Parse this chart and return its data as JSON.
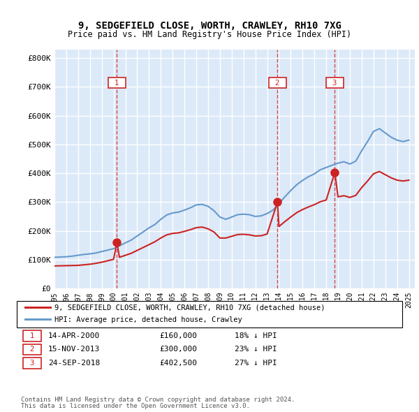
{
  "title": "9, SEDGEFIELD CLOSE, WORTH, CRAWLEY, RH10 7XG",
  "subtitle": "Price paid vs. HM Land Registry's House Price Index (HPI)",
  "ylabel": "",
  "background_color": "#dce9f8",
  "plot_bg": "#dce9f8",
  "legend_line1": "9, SEDGEFIELD CLOSE, WORTH, CRAWLEY, RH10 7XG (detached house)",
  "legend_line2": "HPI: Average price, detached house, Crawley",
  "footnote1": "Contains HM Land Registry data © Crown copyright and database right 2024.",
  "footnote2": "This data is licensed under the Open Government Licence v3.0.",
  "transactions": [
    {
      "num": 1,
      "date": "14-APR-2000",
      "price": 160000,
      "pct": "18%",
      "x": 2000.29
    },
    {
      "num": 2,
      "date": "15-NOV-2013",
      "price": 300000,
      "pct": "23%",
      "x": 2013.88
    },
    {
      "num": 3,
      "date": "24-SEP-2018",
      "price": 402500,
      "pct": "27%",
      "x": 2018.73
    }
  ],
  "hpi_x": [
    1995,
    1995.5,
    1996,
    1996.5,
    1997,
    1997.5,
    1998,
    1998.5,
    1999,
    1999.5,
    2000,
    2000.5,
    2001,
    2001.5,
    2002,
    2002.5,
    2003,
    2003.5,
    2004,
    2004.5,
    2005,
    2005.5,
    2006,
    2006.5,
    2007,
    2007.5,
    2008,
    2008.5,
    2009,
    2009.5,
    2010,
    2010.5,
    2011,
    2011.5,
    2012,
    2012.5,
    2013,
    2013.5,
    2014,
    2014.5,
    2015,
    2015.5,
    2016,
    2016.5,
    2017,
    2017.5,
    2018,
    2018.5,
    2019,
    2019.5,
    2020,
    2020.5,
    2021,
    2021.5,
    2022,
    2022.5,
    2023,
    2023.5,
    2024,
    2024.5,
    2025
  ],
  "hpi_y": [
    108000,
    109000,
    110000,
    112000,
    115000,
    118000,
    120000,
    123000,
    128000,
    133000,
    138000,
    148000,
    158000,
    168000,
    182000,
    196000,
    210000,
    222000,
    240000,
    255000,
    262000,
    265000,
    272000,
    280000,
    290000,
    292000,
    285000,
    270000,
    248000,
    240000,
    248000,
    256000,
    258000,
    256000,
    250000,
    252000,
    260000,
    272000,
    295000,
    318000,
    340000,
    360000,
    375000,
    388000,
    398000,
    412000,
    420000,
    428000,
    435000,
    440000,
    432000,
    442000,
    478000,
    510000,
    545000,
    555000,
    540000,
    525000,
    515000,
    510000,
    515000
  ],
  "price_x": [
    1995,
    1995.5,
    1996,
    1996.5,
    1997,
    1997.5,
    1998,
    1998.5,
    1999,
    1999.5,
    2000,
    2000.29,
    2000.5,
    2001,
    2001.5,
    2002,
    2002.5,
    2003,
    2003.5,
    2004,
    2004.5,
    2005,
    2005.5,
    2006,
    2006.5,
    2007,
    2007.5,
    2008,
    2008.5,
    2009,
    2009.5,
    2010,
    2010.5,
    2011,
    2011.5,
    2012,
    2012.5,
    2013,
    2013.88,
    2014,
    2014.5,
    2015,
    2015.5,
    2016,
    2016.5,
    2017,
    2017.5,
    2018,
    2018.73,
    2019,
    2019.5,
    2020,
    2020.5,
    2021,
    2021.5,
    2022,
    2022.5,
    2023,
    2023.5,
    2024,
    2024.5,
    2025
  ],
  "price_y": [
    78000,
    78500,
    79000,
    79500,
    80000,
    82000,
    84000,
    87000,
    91000,
    96000,
    101000,
    160000,
    108000,
    115000,
    122000,
    132000,
    142000,
    152000,
    162000,
    175000,
    186000,
    191000,
    193000,
    198000,
    204000,
    211000,
    213000,
    207000,
    196000,
    175000,
    175000,
    181000,
    187000,
    188000,
    186000,
    182000,
    183000,
    189000,
    300000,
    215000,
    232000,
    248000,
    263000,
    274000,
    283000,
    291000,
    301000,
    307000,
    402500,
    318000,
    322000,
    316000,
    323000,
    350000,
    373000,
    398000,
    406000,
    395000,
    384000,
    376000,
    373000,
    376000
  ],
  "ylim": [
    0,
    830000
  ],
  "xlim": [
    1995,
    2025.5
  ],
  "yticks": [
    0,
    100000,
    200000,
    300000,
    400000,
    500000,
    600000,
    700000,
    800000
  ],
  "ytick_labels": [
    "£0",
    "£100K",
    "£200K",
    "£300K",
    "£400K",
    "£500K",
    "£600K",
    "£700K",
    "£800K"
  ],
  "xticks": [
    1995,
    1996,
    1997,
    1998,
    1999,
    2000,
    2001,
    2002,
    2003,
    2004,
    2005,
    2006,
    2007,
    2008,
    2009,
    2010,
    2011,
    2012,
    2013,
    2014,
    2015,
    2016,
    2017,
    2018,
    2019,
    2020,
    2021,
    2022,
    2023,
    2024,
    2025
  ],
  "hpi_color": "#6699cc",
  "price_color": "#cc2222",
  "marker_color": "#cc2222",
  "vline_color": "#cc2222",
  "box_color": "#cc2222",
  "grid_color": "#ffffff",
  "label_color_num": "#cc2222"
}
